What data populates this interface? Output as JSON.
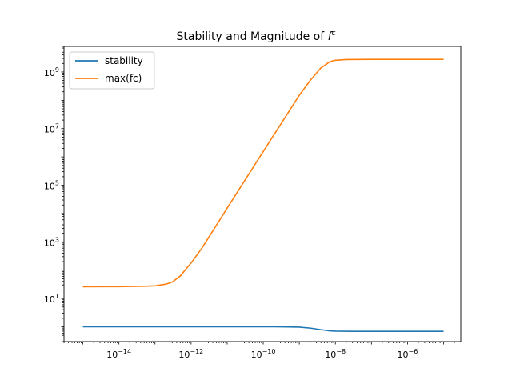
{
  "chart_data": {
    "type": "line",
    "title": "Stability and Magnitude of ",
    "title_symbol": "f",
    "title_superscript": "c",
    "xlabel": "",
    "ylabel": "",
    "xscale": "log",
    "yscale": "log",
    "xlim": [
      3e-16,
      3e-05
    ],
    "ylim": [
      0.3,
      8000000000.0
    ],
    "grid": false,
    "legend_position": "top-left",
    "x_ticks": [
      {
        "value": 1e-14,
        "base": "10",
        "exp": "−14"
      },
      {
        "value": 1e-12,
        "base": "10",
        "exp": "−12"
      },
      {
        "value": 1e-10,
        "base": "10",
        "exp": "−10"
      },
      {
        "value": 1e-08,
        "base": "10",
        "exp": "−8"
      },
      {
        "value": 1e-06,
        "base": "10",
        "exp": "−6"
      }
    ],
    "y_ticks": [
      {
        "value": 10,
        "base": "10",
        "exp": "1"
      },
      {
        "value": 1000,
        "base": "10",
        "exp": "3"
      },
      {
        "value": 100000,
        "base": "10",
        "exp": "5"
      },
      {
        "value": 10000000,
        "base": "10",
        "exp": "7"
      },
      {
        "value": 1000000000,
        "base": "10",
        "exp": "9"
      }
    ],
    "series": [
      {
        "name": "stability",
        "color": "#1f77b4",
        "x": [
          1e-15,
          1e-14,
          1e-13,
          1e-12,
          1e-11,
          1e-10,
          2e-10,
          5e-10,
          1e-09,
          2e-09,
          4e-09,
          7e-09,
          1e-08,
          3e-08,
          1e-07,
          1e-06,
          1e-05
        ],
        "y": [
          1.0,
          1.0,
          1.0,
          1.0,
          1.0,
          1.0,
          1.0,
          0.99,
          0.97,
          0.9,
          0.79,
          0.72,
          0.7,
          0.69,
          0.69,
          0.69,
          0.69
        ]
      },
      {
        "name": "max(fc)",
        "color": "#ff7f0e",
        "x": [
          1e-15,
          1e-14,
          5e-14,
          1e-13,
          2e-13,
          3e-13,
          5e-13,
          1e-12,
          2e-12,
          5e-12,
          1e-11,
          1e-10,
          1e-09,
          2e-09,
          4e-09,
          7e-09,
          1e-08,
          2e-08,
          1e-07,
          1e-06,
          1e-05
        ],
        "y": [
          26,
          26.2,
          27,
          28,
          32,
          38,
          62,
          180,
          600,
          3800,
          15500,
          1550000.0,
          150000000.0,
          500000000.0,
          1400000000.0,
          2300000000.0,
          2600000000.0,
          2750000000.0,
          2800000000.0,
          2800000000.0,
          2800000000.0
        ]
      }
    ]
  }
}
